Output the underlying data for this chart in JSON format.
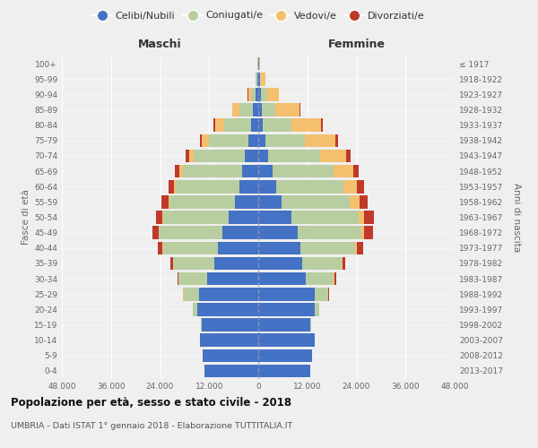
{
  "age_groups": [
    "0-4",
    "5-9",
    "10-14",
    "15-19",
    "20-24",
    "25-29",
    "30-34",
    "35-39",
    "40-44",
    "45-49",
    "50-54",
    "55-59",
    "60-64",
    "65-69",
    "70-74",
    "75-79",
    "80-84",
    "85-89",
    "90-94",
    "95-99",
    "100+"
  ],
  "birth_years": [
    "2013-2017",
    "2008-2012",
    "2003-2007",
    "1998-2002",
    "1993-1997",
    "1988-1992",
    "1983-1987",
    "1978-1982",
    "1973-1977",
    "1968-1972",
    "1963-1967",
    "1958-1962",
    "1953-1957",
    "1948-1952",
    "1943-1947",
    "1938-1942",
    "1933-1937",
    "1928-1932",
    "1923-1927",
    "1918-1922",
    "≤ 1917"
  ],
  "colors": {
    "celibe": "#4472c4",
    "coniugato": "#b8cea0",
    "vedovo": "#f5c06e",
    "divorziato": "#c0392b"
  },
  "maschi": {
    "celibe": [
      13200,
      13500,
      14200,
      13800,
      14800,
      14500,
      12500,
      10800,
      9800,
      8800,
      7200,
      5700,
      4600,
      4000,
      3200,
      2500,
      1800,
      1400,
      620,
      280,
      90
    ],
    "coniugato": [
      30,
      30,
      80,
      280,
      1100,
      3800,
      7000,
      10000,
      13500,
      15500,
      16000,
      16000,
      15500,
      14500,
      12500,
      9500,
      6500,
      3200,
      1100,
      280,
      80
    ],
    "vedovo": [
      8,
      8,
      8,
      15,
      40,
      40,
      45,
      70,
      90,
      130,
      180,
      280,
      450,
      700,
      1100,
      1800,
      2300,
      1700,
      750,
      180,
      40
    ],
    "divorziato": [
      8,
      8,
      8,
      15,
      40,
      90,
      280,
      650,
      1100,
      1500,
      1700,
      1700,
      1400,
      1100,
      850,
      550,
      280,
      130,
      70,
      25,
      8
    ]
  },
  "femmine": {
    "nubile": [
      12700,
      13200,
      13700,
      12700,
      13700,
      13800,
      11700,
      10700,
      10200,
      9600,
      8000,
      5800,
      4300,
      3400,
      2400,
      1700,
      1200,
      920,
      650,
      370,
      130
    ],
    "coniugata": [
      30,
      30,
      80,
      280,
      1100,
      3300,
      6800,
      9700,
      13500,
      15500,
      16500,
      16500,
      16500,
      15000,
      12700,
      9800,
      6800,
      3300,
      1450,
      380,
      80
    ],
    "vedova": [
      8,
      8,
      8,
      15,
      40,
      90,
      130,
      280,
      450,
      750,
      1400,
      2400,
      3400,
      4800,
      6300,
      7300,
      7300,
      5800,
      2900,
      950,
      180
    ],
    "divorziata": [
      8,
      8,
      8,
      25,
      70,
      130,
      380,
      650,
      1400,
      2100,
      2400,
      2100,
      1700,
      1400,
      1100,
      750,
      380,
      180,
      70,
      25,
      8
    ]
  },
  "title": "Popolazione per età, sesso e stato civile - 2018",
  "subtitle": "UMBRIA - Dati ISTAT 1° gennaio 2018 - Elaborazione TUTTITALIA.IT",
  "xlabel_left": "Maschi",
  "xlabel_right": "Femmine",
  "ylabel_left": "Fasce di età",
  "ylabel_right": "Anni di nascita",
  "xlim": 48000,
  "xtick_labels": [
    "48.000",
    "36.000",
    "24.000",
    "12.000",
    "0",
    "12.000",
    "24.000",
    "36.000",
    "48.000"
  ],
  "legend_labels": [
    "Celibi/Nubili",
    "Coniugati/e",
    "Vedovi/e",
    "Divorziati/e"
  ],
  "bg_color": "#efefef"
}
